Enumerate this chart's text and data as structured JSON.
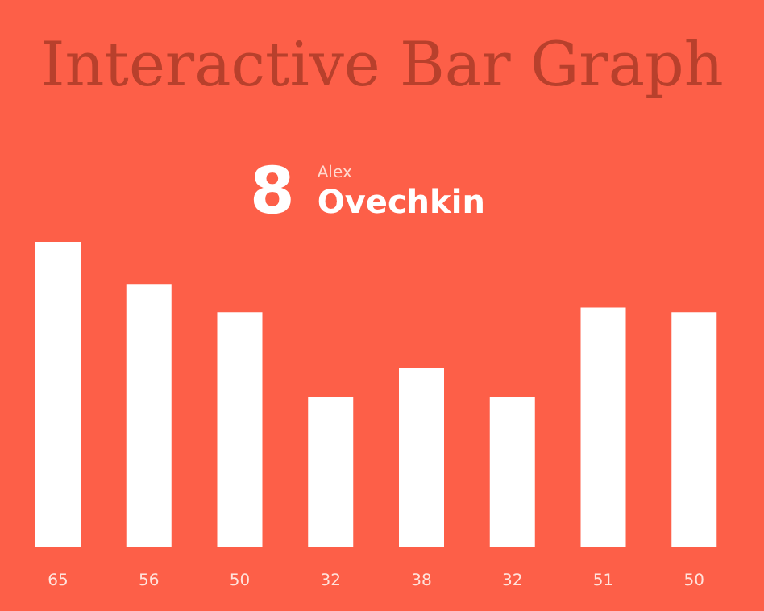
{
  "chart_data": {
    "type": "bar",
    "title": "Interactive Bar Graph",
    "annotations": [
      "8",
      "Alex",
      "Ovechkin"
    ],
    "categories": [
      null,
      null,
      null,
      null,
      null,
      null,
      null,
      null
    ],
    "values": [
      65,
      56,
      50,
      32,
      38,
      32,
      51,
      50
    ],
    "color": "#ffffff",
    "data_labels": true
  }
}
